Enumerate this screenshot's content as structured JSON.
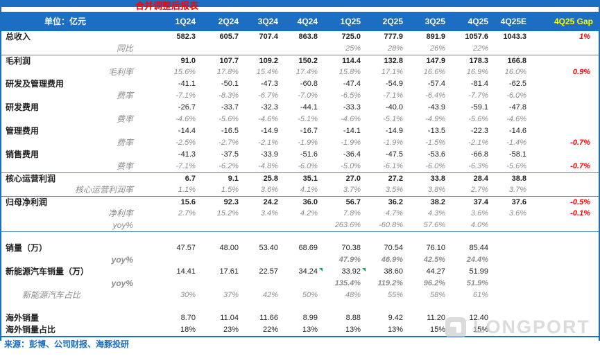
{
  "chart_data": {
    "type": "table",
    "title": "合并调整后报表",
    "unit_label": "单位：亿元",
    "columns": [
      "1Q24",
      "2Q24",
      "3Q24",
      "4Q24",
      "1Q25",
      "2Q25",
      "3Q25",
      "4Q25",
      "4Q25E",
      "4Q25 Gap"
    ],
    "rows": [
      {
        "label": "总收入",
        "style": "bold",
        "values": [
          "582.3",
          "605.7",
          "707.4",
          "863.8",
          "725.0",
          "777.9",
          "891.9",
          "1057.6",
          "1043.3"
        ],
        "gap": "1%"
      },
      {
        "label": "同比",
        "style": "ratio",
        "values": [
          "",
          "",
          "",
          "",
          "25%",
          "28%",
          "26%",
          "22%",
          ""
        ],
        "gap": ""
      },
      {
        "label": "毛利润",
        "style": "bold",
        "sep": true,
        "values": [
          "91.0",
          "107.7",
          "109.2",
          "150.2",
          "114.4",
          "132.8",
          "147.9",
          "178.3",
          "166.8"
        ],
        "gap": ""
      },
      {
        "label": "毛利率",
        "style": "ratio",
        "values": [
          "15.6%",
          "17.8%",
          "15.4%",
          "17.4%",
          "15.8%",
          "17.1%",
          "16.6%",
          "16.9%",
          "16.0%"
        ],
        "gap": "0.9%"
      },
      {
        "label": "研发及管理费用",
        "style": "normal",
        "values": [
          "-41.1",
          "-50.1",
          "-47.3",
          "-60.8",
          "-47.4",
          "-54.9",
          "-57.4",
          "-81.4",
          "-62.5"
        ],
        "gap": ""
      },
      {
        "label": "费率",
        "style": "ratio",
        "values": [
          "-7.1%",
          "-8.3%",
          "-6.7%",
          "-7.0%",
          "-6.5%",
          "-7.1%",
          "-6.4%",
          "-7.7%",
          "-6.0%"
        ],
        "gap": ""
      },
      {
        "label": "研发费用",
        "style": "normal",
        "values": [
          "-26.7",
          "-33.7",
          "-32.3",
          "-44.1",
          "-33.3",
          "-40.0",
          "-43.9",
          "-59.1",
          "-47.8"
        ],
        "gap": ""
      },
      {
        "label": "费率",
        "style": "ratio",
        "values": [
          "-4.6%",
          "-5.6%",
          "-4.6%",
          "-5.1%",
          "-4.6%",
          "-5.1%",
          "-4.9%",
          "-5.6%",
          "-4.6%"
        ],
        "gap": ""
      },
      {
        "label": "管理费用",
        "style": "normal",
        "values": [
          "-14.4",
          "-16.5",
          "-14.9",
          "-16.7",
          "-14.1",
          "-14.9",
          "-13.5",
          "-22.3",
          "-14.6"
        ],
        "gap": ""
      },
      {
        "label": "费率",
        "style": "ratio",
        "values": [
          "-2.5%",
          "-2.7%",
          "-2.1%",
          "-1.9%",
          "-1.9%",
          "-1.9%",
          "-1.5%",
          "-2.1%",
          "-1.4%"
        ],
        "gap": "-0.7%"
      },
      {
        "label": "销售费用",
        "style": "normal",
        "values": [
          "-41.3",
          "-37.5",
          "-33.9",
          "-51.6",
          "-36.4",
          "-47.5",
          "-53.6",
          "-66.8",
          "-58.1"
        ],
        "gap": ""
      },
      {
        "label": "费率",
        "style": "ratio",
        "values": [
          "-7.1%",
          "-6.2%",
          "-4.8%",
          "-6.0%",
          "-5.0%",
          "-6.1%",
          "-6.0%",
          "-6.3%",
          "-5.6%"
        ],
        "gap": "-0.7%"
      },
      {
        "label": "核心运营利润",
        "style": "bold",
        "sep": true,
        "values": [
          "6.7",
          "9.1",
          "25.8",
          "35.1",
          "27.0",
          "27.2",
          "33.8",
          "28.4",
          "38.8"
        ],
        "gap": ""
      },
      {
        "label": "核心运营利润率",
        "style": "ratio",
        "values": [
          "1.1%",
          "1.5%",
          "3.6%",
          "4.1%",
          "3.7%",
          "3.5%",
          "3.8%",
          "2.7%",
          "3.7%"
        ],
        "gap": ""
      },
      {
        "label": "归母净利润",
        "style": "bold",
        "sep": true,
        "values": [
          "15.6",
          "92.3",
          "24.2",
          "36.0",
          "56.7",
          "36.2",
          "38.2",
          "37.4",
          "37.6"
        ],
        "gap": "-0.5%"
      },
      {
        "label": "净利率",
        "style": "ratio",
        "values": [
          "2.7%",
          "15.2%",
          "3.4%",
          "4.2%",
          "7.8%",
          "4.7%",
          "4.3%",
          "3.6%",
          "3.6%"
        ],
        "gap": "-0.1%"
      },
      {
        "label": "yoy%",
        "style": "ratio",
        "values": [
          "",
          "",
          "",
          "",
          "263.6%",
          "-60.8%",
          "57.6%",
          "4.0%",
          ""
        ],
        "gap": ""
      },
      {
        "type": "spacer",
        "line": true
      },
      {
        "label": "销量（万）",
        "style": "normal",
        "values": [
          "47.57",
          "48.00",
          "53.40",
          "68.69",
          "70.38",
          "70.54",
          "76.10",
          "85.44",
          ""
        ],
        "gap": ""
      },
      {
        "label": "yoy%",
        "style": "ratio-bold",
        "values": [
          "",
          "",
          "",
          "",
          "47.9%",
          "46.9%",
          "42.5%",
          "24.4%",
          ""
        ],
        "gap": ""
      },
      {
        "label": "新能源汽车销量（万）",
        "style": "normal",
        "values": [
          "14.41",
          "17.61",
          "22.57",
          "34.24",
          "33.92",
          "38.60",
          "44.27",
          "51.99",
          ""
        ],
        "flags": [
          3,
          4
        ],
        "gap": ""
      },
      {
        "label": "yoy%",
        "style": "ratio-bold",
        "values": [
          "",
          "",
          "",
          "",
          "135.4%",
          "119.2%",
          "96.2%",
          "51.9%",
          ""
        ],
        "gap": ""
      },
      {
        "label": "新能源汽车占比",
        "style": "pct",
        "values": [
          "30%",
          "37%",
          "42%",
          "50%",
          "48%",
          "55%",
          "58%",
          "61%",
          ""
        ],
        "gap": ""
      },
      {
        "type": "spacer",
        "line": false
      },
      {
        "label": "海外销量",
        "style": "normal",
        "values": [
          "8.70",
          "11.04",
          "11.66",
          "8.99",
          "8.88",
          "9.42",
          "11.20",
          "12.40",
          ""
        ],
        "gap": ""
      },
      {
        "label": "海外销量占比",
        "style": "normal",
        "values": [
          "18%",
          "23%",
          "22%",
          "13%",
          "13%",
          "13%",
          "15%",
          "15%",
          ""
        ],
        "gap": ""
      }
    ],
    "source": "来源：彭博、公司财报、海豚投研",
    "watermark": "LONGPORT"
  },
  "colors": {
    "accent": "#1b6ec2",
    "line": "#4a86c8",
    "red": "#ff0000",
    "yellow": "#ffff00",
    "gray": "#8c8c8c",
    "green": "#00b050"
  }
}
